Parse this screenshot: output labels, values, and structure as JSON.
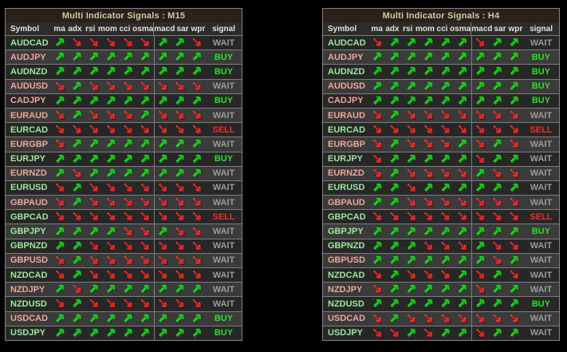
{
  "columns": [
    "Symbol",
    "ma",
    "adx",
    "rsi",
    "mom",
    "cci",
    "osma",
    "macd",
    "sar",
    "wpr",
    "signal"
  ],
  "arrow_key": {
    "u": "up",
    "d": "down"
  },
  "arrow_glyphs": {
    "up": "↗",
    "down": "↘"
  },
  "colors": {
    "page_bg": "#000000",
    "table_border": "#848484",
    "title_bg": "#2a211b",
    "title_text": "#c9cfa2",
    "header_bg": "#2e2c29",
    "header_text": "#e2e2e2",
    "row_dark": "#272727",
    "row_light": "#3b3b3b",
    "symbol_green": "#9ce89c",
    "symbol_salmon": "#f0a49a",
    "arrow_up": "#00d400",
    "arrow_down": "#f21818",
    "signal_buy": "#2ae02a",
    "signal_sell": "#f22c2c",
    "signal_wait": "#9a9a9a"
  },
  "tables": [
    {
      "title": "Multi Indicator Signals : M15",
      "timeframe": "M15",
      "rows": [
        {
          "symbol": "AUDCAD",
          "symbol_color": "green",
          "arrows": "uddddduud",
          "signal": "WAIT"
        },
        {
          "symbol": "AUDJPY",
          "symbol_color": "salmon",
          "arrows": "uuuuuuuuu",
          "signal": "BUY"
        },
        {
          "symbol": "AUDNZD",
          "symbol_color": "green",
          "arrows": "uuuuuuuuu",
          "signal": "BUY"
        },
        {
          "symbol": "AUDUSD",
          "symbol_color": "salmon",
          "arrows": "duddddddd",
          "signal": "WAIT"
        },
        {
          "symbol": "CADJPY",
          "symbol_color": "salmon",
          "arrows": "uuuuuuuuu",
          "signal": "BUY"
        },
        {
          "symbol": "EURAUD",
          "symbol_color": "salmon",
          "arrows": "duddduddd",
          "signal": "WAIT"
        },
        {
          "symbol": "EURCAD",
          "symbol_color": "green",
          "arrows": "ddddddddd",
          "signal": "SELL"
        },
        {
          "symbol": "EURGBP",
          "symbol_color": "salmon",
          "arrows": "duuuuuuuu",
          "signal": "WAIT"
        },
        {
          "symbol": "EURJPY",
          "symbol_color": "green",
          "arrows": "uuuuuuuuu",
          "signal": "BUY"
        },
        {
          "symbol": "EURNZD",
          "symbol_color": "salmon",
          "arrows": "uduuuuuuu",
          "signal": "WAIT"
        },
        {
          "symbol": "EURUSD",
          "symbol_color": "green",
          "arrows": "duddddddd",
          "signal": "WAIT"
        },
        {
          "symbol": "GBPAUD",
          "symbol_color": "salmon",
          "arrows": "duddddddd",
          "signal": "WAIT"
        },
        {
          "symbol": "GBPCAD",
          "symbol_color": "green",
          "arrows": "ddddddddd",
          "signal": "SELL"
        },
        {
          "symbol": "GBPJPY",
          "symbol_color": "green",
          "arrows": "uuuuddudd",
          "signal": "WAIT"
        },
        {
          "symbol": "GBPNZD",
          "symbol_color": "green",
          "arrows": "uuddddddd",
          "signal": "WAIT"
        },
        {
          "symbol": "GBPUSD",
          "symbol_color": "salmon",
          "arrows": "duddddddd",
          "signal": "WAIT"
        },
        {
          "symbol": "NZDCAD",
          "symbol_color": "green",
          "arrows": "duddddddd",
          "signal": "WAIT"
        },
        {
          "symbol": "NZDJPY",
          "symbol_color": "salmon",
          "arrows": "uduuuuuuu",
          "signal": "WAIT"
        },
        {
          "symbol": "NZDUSD",
          "symbol_color": "green",
          "arrows": "duddddddd",
          "signal": "WAIT"
        },
        {
          "symbol": "USDCAD",
          "symbol_color": "salmon",
          "arrows": "uuuuuuuuu",
          "signal": "BUY"
        },
        {
          "symbol": "USDJPY",
          "symbol_color": "green",
          "arrows": "uuuuuuuuu",
          "signal": "BUY"
        }
      ]
    },
    {
      "title": "Multi Indicator Signals : H4",
      "timeframe": "H4",
      "rows": [
        {
          "symbol": "AUDCAD",
          "symbol_color": "green",
          "arrows": "duuuuuduu",
          "signal": "WAIT"
        },
        {
          "symbol": "AUDJPY",
          "symbol_color": "salmon",
          "arrows": "uuuuuuuuu",
          "signal": "BUY"
        },
        {
          "symbol": "AUDNZD",
          "symbol_color": "green",
          "arrows": "uuuuuuuuu",
          "signal": "BUY"
        },
        {
          "symbol": "AUDUSD",
          "symbol_color": "salmon",
          "arrows": "uuuuuuuuu",
          "signal": "BUY"
        },
        {
          "symbol": "CADJPY",
          "symbol_color": "salmon",
          "arrows": "uuuuuuuuu",
          "signal": "BUY"
        },
        {
          "symbol": "EURAUD",
          "symbol_color": "salmon",
          "arrows": "duddddddd",
          "signal": "WAIT"
        },
        {
          "symbol": "EURCAD",
          "symbol_color": "green",
          "arrows": "ddddddddd",
          "signal": "SELL"
        },
        {
          "symbol": "EURGBP",
          "symbol_color": "salmon",
          "arrows": "dudddudud",
          "signal": "WAIT"
        },
        {
          "symbol": "EURJPY",
          "symbol_color": "green",
          "arrows": "duuuuuduu",
          "signal": "WAIT"
        },
        {
          "symbol": "EURNZD",
          "symbol_color": "salmon",
          "arrows": "duddddudd",
          "signal": "WAIT"
        },
        {
          "symbol": "EURUSD",
          "symbol_color": "green",
          "arrows": "uuduuuuuu",
          "signal": "WAIT"
        },
        {
          "symbol": "GBPAUD",
          "symbol_color": "salmon",
          "arrows": "uuddddddd",
          "signal": "WAIT"
        },
        {
          "symbol": "GBPCAD",
          "symbol_color": "green",
          "arrows": "ddddddddd",
          "signal": "SELL"
        },
        {
          "symbol": "GBPJPY",
          "symbol_color": "green",
          "arrows": "uuuuuuuuu",
          "signal": "BUY"
        },
        {
          "symbol": "GBPNZD",
          "symbol_color": "green",
          "arrows": "uuudddudd",
          "signal": "WAIT"
        },
        {
          "symbol": "GBPUSD",
          "symbol_color": "salmon",
          "arrows": "uuuuuuudu",
          "signal": "WAIT"
        },
        {
          "symbol": "NZDCAD",
          "symbol_color": "green",
          "arrows": "dudddudud",
          "signal": "WAIT"
        },
        {
          "symbol": "NZDJPY",
          "symbol_color": "salmon",
          "arrows": "duuuuuduu",
          "signal": "WAIT"
        },
        {
          "symbol": "NZDUSD",
          "symbol_color": "green",
          "arrows": "uuuuuuuuu",
          "signal": "BUY"
        },
        {
          "symbol": "USDCAD",
          "symbol_color": "salmon",
          "arrows": "duddddddd",
          "signal": "WAIT"
        },
        {
          "symbol": "USDJPY",
          "symbol_color": "green",
          "arrows": "dduduuduu",
          "signal": "WAIT"
        }
      ]
    }
  ]
}
